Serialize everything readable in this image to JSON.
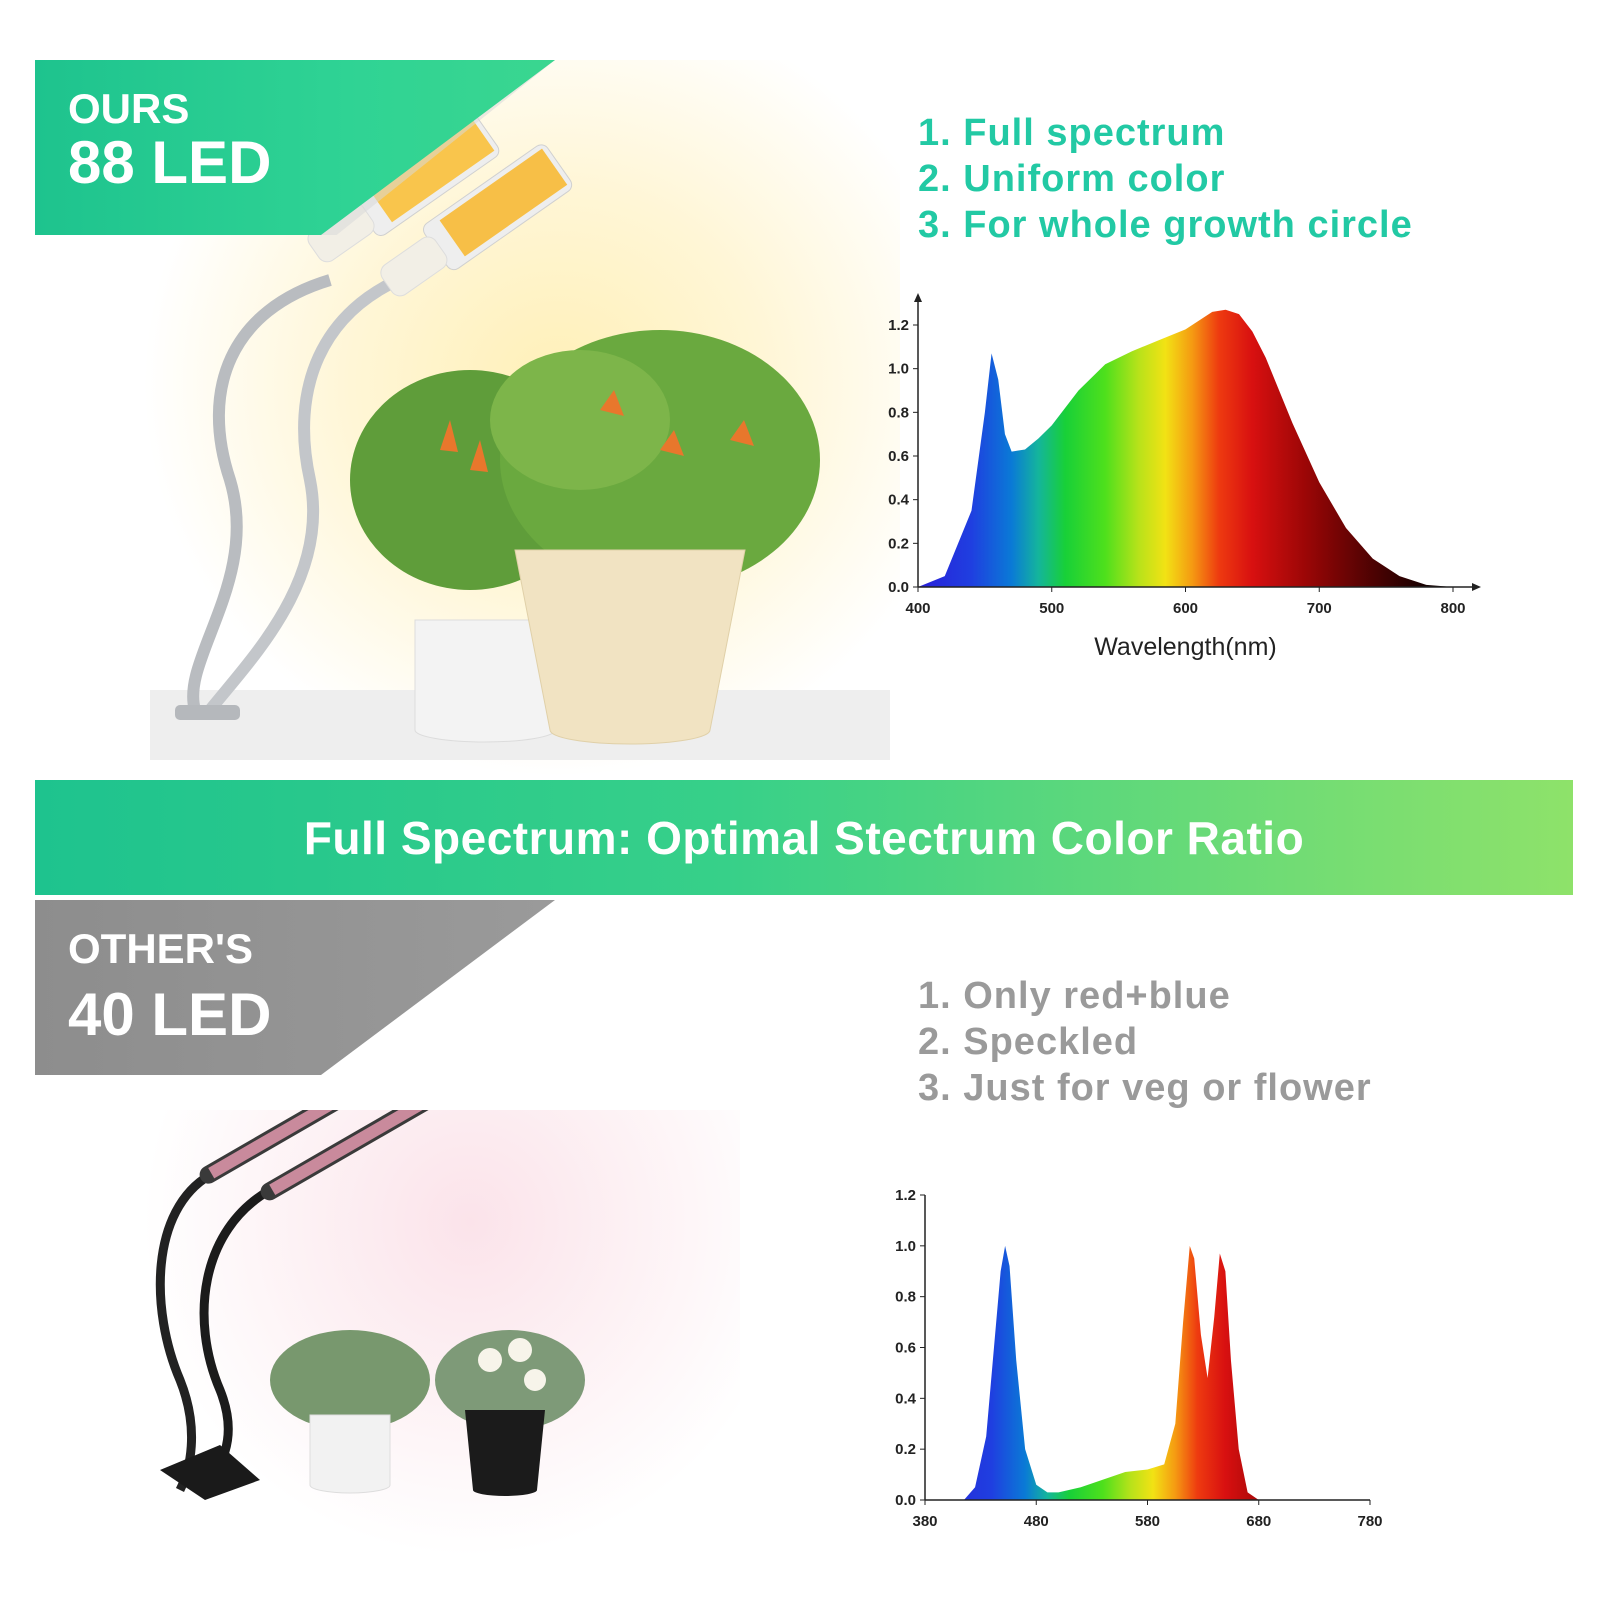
{
  "ours": {
    "tag_line1": "OURS",
    "tag_line2": "88 LED",
    "features": [
      "1. Full spectrum",
      "2. Uniform color",
      "3. For whole growth circle"
    ]
  },
  "banner": {
    "text": "Full Spectrum: Optimal Stectrum Color Ratio"
  },
  "others": {
    "tag_line1": "OTHER'S",
    "tag_line2": "40 LED",
    "features": [
      "1. Only red+blue",
      "2. Speckled",
      "3. Just for veg or flower"
    ]
  },
  "colors": {
    "green_accent": "#22c9a4",
    "banner_green": "#1ec38e",
    "grey": "#9a9a9a"
  },
  "chart_data": [
    {
      "type": "area",
      "xlabel": "Wavelength(nm)",
      "ylabel": "",
      "xlim": [
        400,
        800
      ],
      "ylim": [
        0,
        1.2
      ],
      "xticks": [
        400,
        500,
        600,
        700,
        800
      ],
      "yticks": [
        "0.0",
        "0.2",
        "0.4",
        "0.6",
        "0.8",
        "1.0",
        "1.2"
      ],
      "x": [
        400,
        420,
        440,
        450,
        455,
        460,
        465,
        470,
        480,
        490,
        500,
        520,
        540,
        560,
        580,
        600,
        620,
        630,
        640,
        650,
        660,
        680,
        700,
        720,
        740,
        760,
        780,
        800
      ],
      "y": [
        0.0,
        0.05,
        0.35,
        0.8,
        1.07,
        0.95,
        0.7,
        0.62,
        0.63,
        0.68,
        0.74,
        0.9,
        1.02,
        1.08,
        1.13,
        1.18,
        1.26,
        1.27,
        1.25,
        1.17,
        1.05,
        0.75,
        0.48,
        0.27,
        0.13,
        0.05,
        0.01,
        0.0
      ]
    },
    {
      "type": "area",
      "xlabel": "",
      "ylabel": "",
      "xlim": [
        380,
        780
      ],
      "ylim": [
        0,
        1.2
      ],
      "xticks": [
        380,
        480,
        580,
        680,
        780
      ],
      "yticks": [
        "0.0",
        "0.2",
        "0.4",
        "0.6",
        "0.8",
        "1.0",
        "1.2"
      ],
      "x": [
        380,
        415,
        425,
        435,
        442,
        448,
        452,
        456,
        462,
        470,
        480,
        490,
        500,
        520,
        540,
        560,
        580,
        595,
        605,
        612,
        618,
        622,
        628,
        634,
        640,
        645,
        650,
        655,
        662,
        670,
        680,
        780
      ],
      "y": [
        0.0,
        0.0,
        0.05,
        0.25,
        0.6,
        0.9,
        1.0,
        0.92,
        0.55,
        0.2,
        0.06,
        0.03,
        0.03,
        0.05,
        0.08,
        0.11,
        0.12,
        0.14,
        0.3,
        0.7,
        1.0,
        0.95,
        0.65,
        0.48,
        0.72,
        0.97,
        0.9,
        0.55,
        0.2,
        0.03,
        0.0,
        0.0
      ]
    }
  ]
}
